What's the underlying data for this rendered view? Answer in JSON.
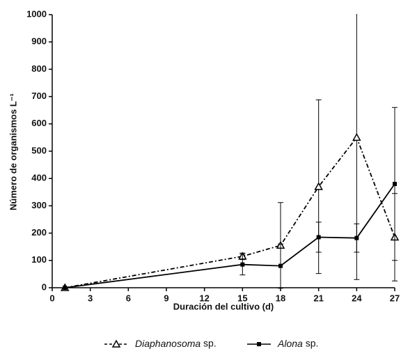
{
  "chart_data": {
    "type": "line",
    "x_label": "Duración del cultivo (d)",
    "y_label": "Número de organismos L⁻¹",
    "xlim": [
      0,
      27
    ],
    "xticks": [
      0,
      3,
      6,
      9,
      12,
      15,
      18,
      21,
      24,
      27
    ],
    "ylim": [
      0,
      1000
    ],
    "yticks": [
      0,
      100,
      200,
      300,
      400,
      500,
      600,
      700,
      800,
      900,
      1000
    ],
    "x": [
      1,
      15,
      18,
      21,
      24,
      27
    ],
    "series": [
      {
        "name": "Diaphanosoma sp.",
        "color": "#000000",
        "line_style": "dashed",
        "marker": "triangle",
        "values": [
          0,
          115,
          155,
          370,
          550,
          185
        ],
        "errors": [
          0,
          12,
          157,
          318,
          520,
          160
        ]
      },
      {
        "name": "Alona sp.",
        "color": "#000000",
        "line_style": "solid",
        "marker": "square",
        "values": [
          0,
          85,
          80,
          185,
          182,
          380
        ],
        "errors": [
          0,
          38,
          80,
          55,
          52,
          280
        ]
      }
    ],
    "legend": "bottom"
  }
}
